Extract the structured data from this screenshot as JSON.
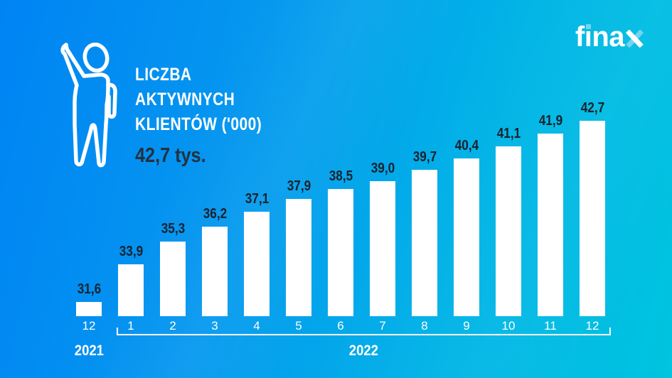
{
  "brand": {
    "logo_part_f": "f",
    "logo_part_i": "ı",
    "logo_part_na": "na",
    "accent_color": "#74d4f0"
  },
  "header": {
    "icon": "person-waving-icon",
    "title_lines": [
      "LICZBA",
      "AKTYWNYCH",
      "KLIENTÓW ('000)"
    ],
    "subtitle": "42,7 tys."
  },
  "chart_data": {
    "type": "bar",
    "title": "LICZBA AKTYWNYCH KLIENTÓW ('000)",
    "subtitle": "42,7 tys.",
    "categories": [
      "12",
      "1",
      "2",
      "3",
      "4",
      "5",
      "6",
      "7",
      "8",
      "9",
      "10",
      "11",
      "12"
    ],
    "values": [
      31.6,
      33.9,
      35.3,
      36.2,
      37.1,
      37.9,
      38.5,
      39.0,
      39.7,
      40.4,
      41.1,
      41.9,
      42.7
    ],
    "value_labels": [
      "31,6",
      "33,9",
      "35,3",
      "36,2",
      "37,1",
      "37,9",
      "38,5",
      "39,0",
      "39,7",
      "40,4",
      "41,1",
      "41,9",
      "42,7"
    ],
    "groups": [
      {
        "label": "2021",
        "start": 0,
        "end": 0
      },
      {
        "label": "2022",
        "start": 1,
        "end": 12
      }
    ],
    "bar_color": "#ffffff",
    "value_label_color": "#17232f",
    "axis_label_color": "#ffffff",
    "ylim": [
      30.7,
      43.5
    ],
    "grid": false,
    "legend": false
  },
  "colors": {
    "bg_gradient_from": "#0084f4",
    "bg_gradient_to": "#00c4e0",
    "ink_dark": "#17232f",
    "white": "#ffffff"
  }
}
